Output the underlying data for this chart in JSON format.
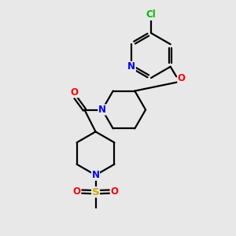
{
  "background_color": "#e8e8e8",
  "bond_color": "#000000",
  "atom_colors": {
    "N": "#0000ff",
    "O": "#ff0000",
    "S": "#ccaa00",
    "Cl": "#00bb00",
    "C": "#000000"
  },
  "figsize": [
    3.0,
    3.0
  ],
  "dpi": 100
}
